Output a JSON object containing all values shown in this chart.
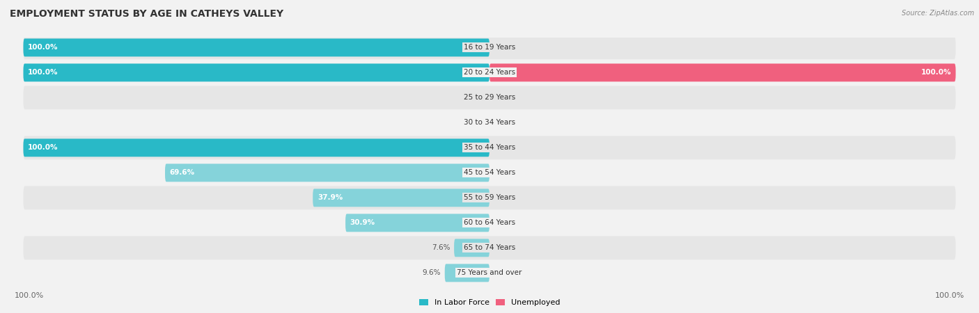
{
  "title": "EMPLOYMENT STATUS BY AGE IN CATHEYS VALLEY",
  "source": "Source: ZipAtlas.com",
  "categories": [
    "16 to 19 Years",
    "20 to 24 Years",
    "25 to 29 Years",
    "30 to 34 Years",
    "35 to 44 Years",
    "45 to 54 Years",
    "55 to 59 Years",
    "60 to 64 Years",
    "65 to 74 Years",
    "75 Years and over"
  ],
  "labor_force": [
    100.0,
    100.0,
    0.0,
    0.0,
    100.0,
    69.6,
    37.9,
    30.9,
    7.6,
    9.6
  ],
  "unemployed": [
    0.0,
    100.0,
    0.0,
    0.0,
    0.0,
    0.0,
    0.0,
    0.0,
    0.0,
    0.0
  ],
  "labor_force_color_full": "#29b9c7",
  "labor_force_color_partial": "#85d3da",
  "unemployed_color_full": "#f0607e",
  "unemployed_color_partial": "#f5a8b8",
  "bg_light": "#f2f2f2",
  "bg_dark": "#e6e6e6",
  "separator_color": "#ffffff",
  "max_value": 100.0,
  "legend_labor": "In Labor Force",
  "legend_unemployed": "Unemployed",
  "title_fontsize": 10,
  "label_fontsize": 7.5,
  "axis_label_fontsize": 8
}
